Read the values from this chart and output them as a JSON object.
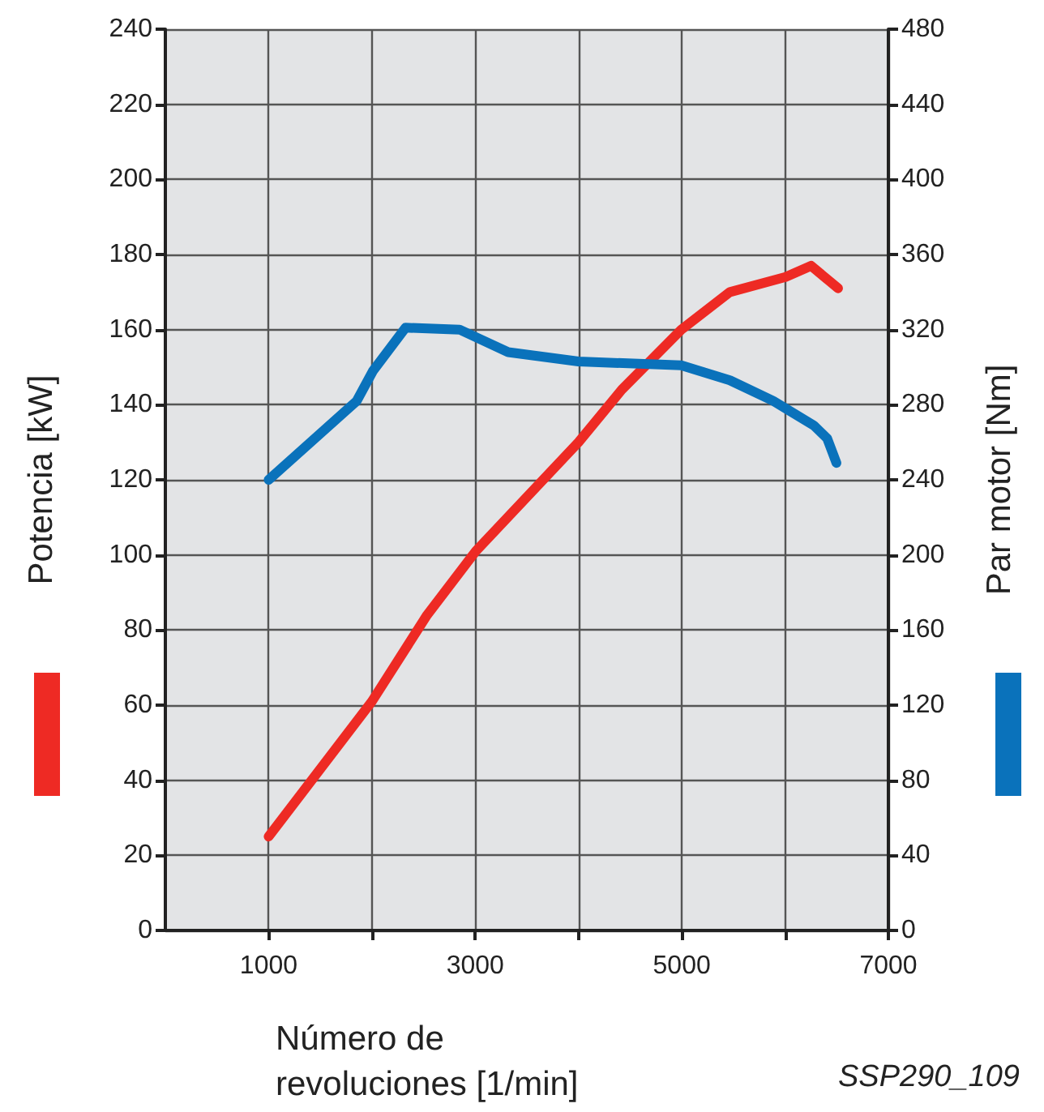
{
  "chart_data": {
    "type": "line",
    "xlabel": "Número de\nrevoluciones [1/min]",
    "ylabel": "Potencia [kW]",
    "y2label": "Par motor [Nm]",
    "annotations": [
      "SSP290_109"
    ],
    "series": [
      {
        "color": "#ee2a24",
        "x": [
          1000,
          2000,
          2534,
          3005,
          4000,
          4419,
          4995,
          5466,
          6005,
          6251,
          6513
        ],
        "values": [
          25,
          61,
          84,
          101,
          130,
          144,
          160,
          170,
          174,
          177,
          171
        ]
      },
      {
        "color": "#0a72bb",
        "axis": "y2",
        "x": [
          1000,
          1853,
          2010,
          2325,
          2848,
          3319,
          4000,
          4995,
          5466,
          5885,
          6277,
          6408,
          6497
        ],
        "values": [
          240,
          282,
          298,
          321,
          320,
          308,
          303,
          301,
          293,
          282,
          269,
          262,
          249
        ]
      }
    ],
    "xlim": [
      0,
      7000
    ],
    "xticks": [
      1000,
      {
        "value": 2000,
        "label": null
      },
      3000,
      {
        "value": 4000,
        "label": null
      },
      5000,
      {
        "value": 6000,
        "label": null
      },
      7000
    ],
    "ylim": [
      0,
      240
    ],
    "yticks": [
      0,
      20,
      40,
      60,
      80,
      100,
      120,
      140,
      160,
      180,
      200,
      220,
      240
    ],
    "y2lim": [
      0,
      480
    ],
    "y2ticks": [
      0,
      40,
      80,
      120,
      160,
      200,
      240,
      280,
      320,
      360,
      400,
      440,
      480
    ],
    "grid": true,
    "marker": "none",
    "line_style": "solid"
  }
}
